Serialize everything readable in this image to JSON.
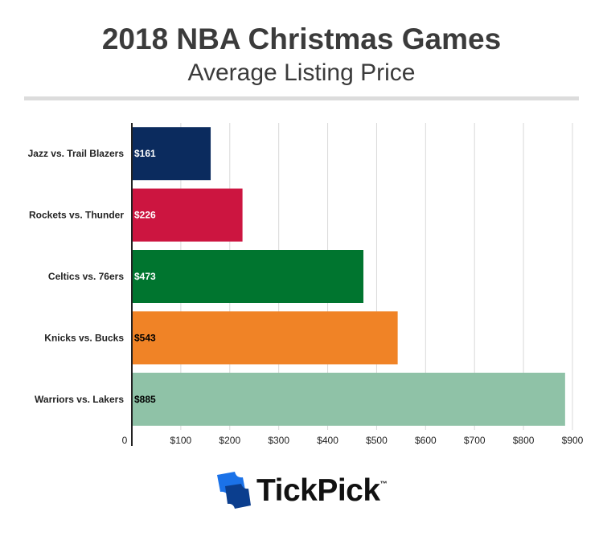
{
  "header": {
    "title": "2018 NBA Christmas Games",
    "subtitle": "Average Listing Price"
  },
  "brand": {
    "name": "TickPick",
    "trademark": "™",
    "icon": "tickpick-ticket-logo-icon",
    "logo_colors": [
      "#1b72e8",
      "#0b3e8e"
    ]
  },
  "chart_data": {
    "type": "bar",
    "orientation": "horizontal",
    "title": "2018 NBA Christmas Games",
    "subtitle": "Average Listing Price",
    "categories": [
      "Jazz vs. Trail Blazers",
      "Rockets vs. Thunder",
      "Celtics vs. 76ers",
      "Knicks vs. Bucks",
      "Warriors vs. Lakers"
    ],
    "values": [
      161,
      226,
      473,
      543,
      885
    ],
    "value_labels": [
      "$161",
      "$226",
      "$473",
      "$543",
      "$885"
    ],
    "bar_colors": [
      "#0b2b5e",
      "#cc1540",
      "#00752f",
      "#f08326",
      "#8fc2a7"
    ],
    "label_colors": [
      "#ffffff",
      "#ffffff",
      "#ffffff",
      "#000000",
      "#000000"
    ],
    "xlim": [
      0,
      900
    ],
    "xticks": [
      0,
      100,
      200,
      300,
      400,
      500,
      600,
      700,
      800,
      900
    ],
    "xtick_labels": [
      "0",
      "$100",
      "$200",
      "$300",
      "$400",
      "$500",
      "$600",
      "$700",
      "$800",
      "$900"
    ],
    "grid": true,
    "xlabel": "",
    "ylabel": ""
  }
}
